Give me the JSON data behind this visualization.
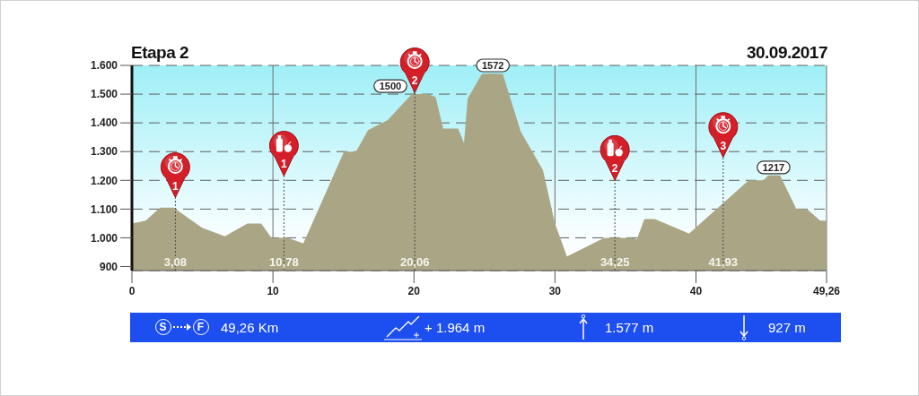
{
  "chart_data": {
    "type": "area",
    "title": "Etapa 2",
    "subtitle": "30.09.2017",
    "x": [
      0,
      0.98,
      1.99,
      2.95,
      4.98,
      6.59,
      8.19,
      9.16,
      9.9,
      11.08,
      12.15,
      15.04,
      15.89,
      16.75,
      18.14,
      19.85,
      20.91,
      21.54,
      22.07,
      23.13,
      23.55,
      23.81,
      24.82,
      25.6,
      26.3,
      27.57,
      29.15,
      30.0,
      30.85,
      33.49,
      35.39,
      35.81,
      36.34,
      37.08,
      39.51,
      43.74,
      44.8,
      45.12,
      45.5,
      45.96,
      47.12,
      47.86,
      48.81,
      49.26
    ],
    "values": [
      1050,
      1060,
      1105,
      1105,
      1035,
      1005,
      1050,
      1050,
      1000,
      1000,
      980,
      1300,
      1300,
      1375,
      1410,
      1500,
      1500,
      1490,
      1380,
      1380,
      1330,
      1485,
      1570,
      1572,
      1570,
      1370,
      1235,
      1050,
      935,
      1000,
      1000,
      995,
      1065,
      1065,
      1015,
      1200,
      1200,
      1217,
      1217,
      1217,
      1100,
      1100,
      1060,
      1060
    ],
    "value_labels": [
      null,
      null,
      null,
      null,
      null,
      null,
      null,
      null,
      null,
      null,
      null,
      null,
      null,
      null,
      null,
      "1500",
      null,
      null,
      null,
      null,
      null,
      null,
      null,
      "1572",
      null,
      null,
      null,
      null,
      null,
      null,
      null,
      null,
      null,
      null,
      null,
      null,
      null,
      null,
      "1217",
      null,
      null,
      null,
      null,
      null
    ],
    "color": "#aaa685",
    "xlim": [
      0,
      49.26
    ],
    "xticks": [
      0,
      10,
      20,
      30,
      40,
      {
        "value": 49.26,
        "label": "49,26"
      }
    ],
    "ylim": [
      886,
      1600
    ],
    "yticks": [
      {
        "value": 1600,
        "label": "1.600"
      },
      {
        "value": 1500,
        "label": "1.500"
      },
      {
        "value": 1400,
        "label": "1.400"
      },
      {
        "value": 1300,
        "label": "1.300"
      },
      {
        "value": 1200,
        "label": "1.200"
      },
      {
        "value": 1100,
        "label": "1.100"
      },
      {
        "value": 1000,
        "label": "1.000"
      },
      900
    ],
    "grid": true,
    "ref_lines": [
      {
        "axis": "x",
        "value": 3.08,
        "label": "3,08",
        "line_style": "dotted",
        "color": "#4a4a4a"
      },
      {
        "axis": "x",
        "value": 10.78,
        "label": "10,78",
        "line_style": "dotted",
        "color": "#4a4a4a"
      },
      {
        "axis": "x",
        "value": 20.06,
        "label": "20,06",
        "line_style": "dotted",
        "color": "#4a4a4a"
      },
      {
        "axis": "x",
        "value": 34.25,
        "label": "34,25",
        "line_style": "dotted",
        "color": "#4a4a4a"
      },
      {
        "axis": "x",
        "value": 41.93,
        "label": "41,93",
        "line_style": "dotted",
        "color": "#4a4a4a"
      }
    ],
    "annotations": [
      "S",
      "F",
      "49,26 Km",
      "+ 1.964 m",
      "1.577 m",
      "927 m",
      {
        "text": "1",
        "x": 3.08,
        "y": 1140
      },
      {
        "text": "1",
        "x": 10.78,
        "y": 1215
      },
      {
        "text": "2",
        "x": 20.06,
        "y": 1505
      },
      {
        "text": "2",
        "x": 34.25,
        "y": 1200
      },
      {
        "text": "3",
        "x": 41.93,
        "y": 1280
      }
    ]
  }
}
